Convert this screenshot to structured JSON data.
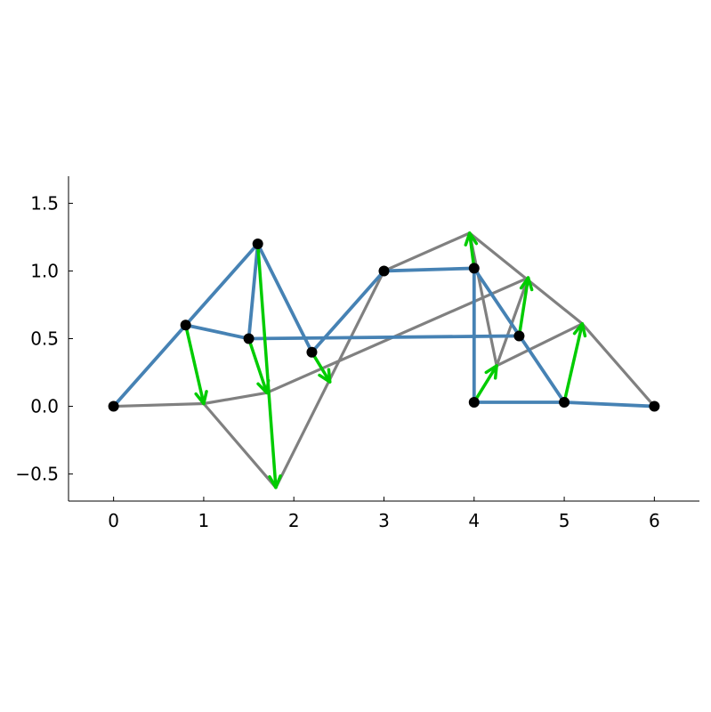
{
  "chart_data": {
    "type": "line",
    "title": "",
    "xlabel": "",
    "ylabel": "",
    "xlim": [
      -0.5,
      6.5
    ],
    "ylim": [
      -0.7,
      1.7
    ],
    "x_ticks": [
      0,
      1,
      2,
      3,
      4,
      5,
      6
    ],
    "y_ticks": [
      -0.5,
      0.0,
      0.5,
      1.0,
      1.5
    ],
    "x_tick_labels": [
      "0",
      "1",
      "2",
      "3",
      "4",
      "5",
      "6"
    ],
    "y_tick_labels": [
      "−0.5",
      "0.0",
      "0.5",
      "1.0",
      "1.5"
    ],
    "grid": false,
    "legend": "none",
    "colors": {
      "original_edges": "#4682b4",
      "displaced_edges": "#808080",
      "displacement_arrows": "#00cc00",
      "nodes": "#000000"
    },
    "nodes": [
      {
        "x": 0.0,
        "y": 0.0
      },
      {
        "x": 0.8,
        "y": 0.6
      },
      {
        "x": 1.6,
        "y": 1.2
      },
      {
        "x": 1.5,
        "y": 0.5
      },
      {
        "x": 2.2,
        "y": 0.4
      },
      {
        "x": 3.0,
        "y": 1.0
      },
      {
        "x": 4.0,
        "y": 1.02
      },
      {
        "x": 4.5,
        "y": 0.52
      },
      {
        "x": 4.0,
        "y": 0.03
      },
      {
        "x": 5.0,
        "y": 0.03
      },
      {
        "x": 6.0,
        "y": 0.0
      }
    ],
    "displaced_nodes": [
      {
        "x": 0.0,
        "y": 0.0
      },
      {
        "x": 1.0,
        "y": 0.02
      },
      {
        "x": 1.8,
        "y": -0.6
      },
      {
        "x": 1.7,
        "y": 0.1
      },
      {
        "x": 2.4,
        "y": 0.18
      },
      {
        "x": 3.0,
        "y": 1.0
      },
      {
        "x": 3.95,
        "y": 1.28
      },
      {
        "x": 4.6,
        "y": 0.95
      },
      {
        "x": 4.25,
        "y": 0.3
      },
      {
        "x": 5.2,
        "y": 0.61
      },
      {
        "x": 6.0,
        "y": 0.0
      }
    ],
    "edges": [
      [
        0,
        1
      ],
      [
        1,
        2
      ],
      [
        1,
        3
      ],
      [
        2,
        3
      ],
      [
        2,
        4
      ],
      [
        3,
        7
      ],
      [
        4,
        5
      ],
      [
        5,
        6
      ],
      [
        6,
        8
      ],
      [
        6,
        9
      ],
      [
        8,
        9
      ],
      [
        9,
        10
      ],
      [
        6,
        7
      ],
      [
        7,
        8
      ]
    ],
    "displaced_edges": [
      [
        0,
        1
      ],
      [
        1,
        3
      ],
      [
        1,
        2
      ],
      [
        3,
        7
      ],
      [
        2,
        5
      ],
      [
        4,
        3
      ],
      [
        5,
        6
      ],
      [
        6,
        9
      ],
      [
        9,
        10
      ],
      [
        6,
        8
      ],
      [
        8,
        9
      ],
      [
        8,
        7
      ],
      [
        7,
        9
      ]
    ],
    "blue_edges": [
      [
        0,
        1
      ],
      [
        1,
        2
      ],
      [
        1,
        3
      ],
      [
        2,
        3
      ],
      [
        2,
        4
      ],
      [
        3,
        7
      ],
      [
        4,
        5
      ],
      [
        5,
        6
      ],
      [
        6,
        8
      ],
      [
        6,
        9
      ],
      [
        8,
        9
      ],
      [
        9,
        10
      ]
    ],
    "gray_edges": [
      [
        0,
        1
      ],
      [
        1,
        2
      ],
      [
        1,
        3
      ],
      [
        3,
        7
      ],
      [
        2,
        5
      ],
      [
        5,
        6
      ],
      [
        6,
        9
      ],
      [
        9,
        10
      ],
      [
        6,
        8
      ],
      [
        8,
        7
      ],
      [
        8,
        9
      ]
    ]
  }
}
